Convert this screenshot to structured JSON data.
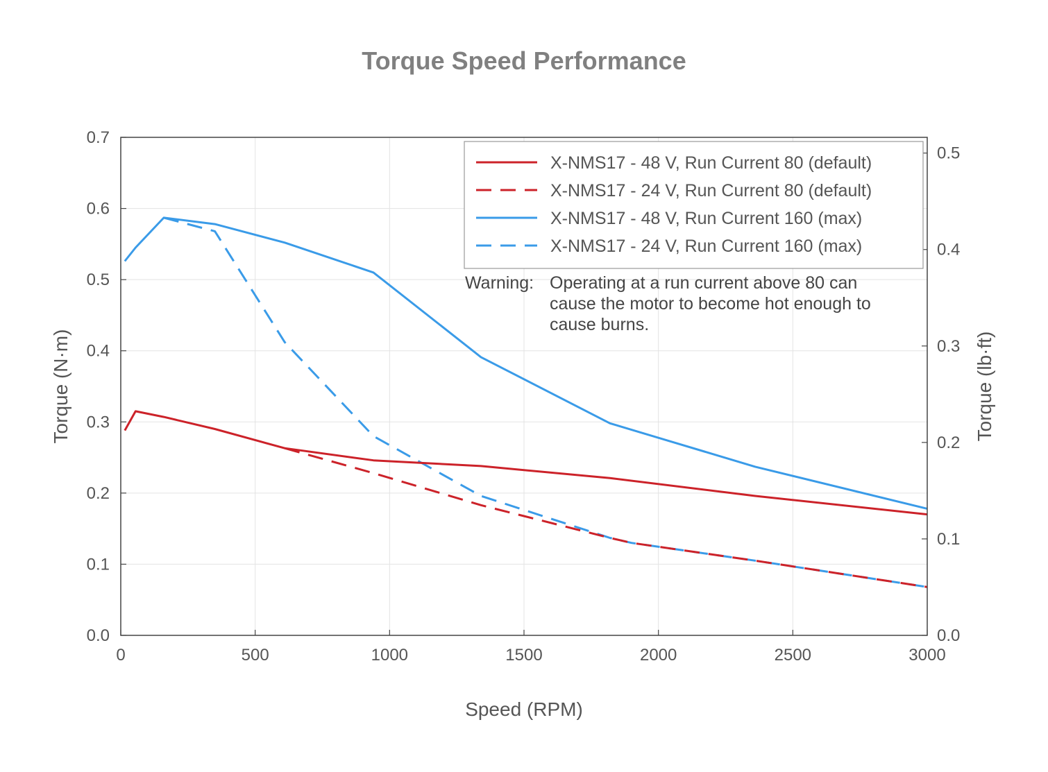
{
  "chart_data": {
    "type": "line",
    "title": "Torque Speed Performance",
    "xlabel": "Speed (RPM)",
    "ylabel": "Torque (N·m)",
    "y2label": "Torque (lb·ft)",
    "xlim": [
      0,
      3000
    ],
    "ylim": [
      0,
      0.7
    ],
    "y2lim": [
      0,
      0.5163
    ],
    "x_ticks": [
      "0",
      "500",
      "1000",
      "1500",
      "2000",
      "2500",
      "3000"
    ],
    "y_ticks": [
      "0.0",
      "0.1",
      "0.2",
      "0.3",
      "0.4",
      "0.5",
      "0.6",
      "0.7"
    ],
    "y2_ticks": [
      "0.0",
      "0.1",
      "0.2",
      "0.3",
      "0.4",
      "0.5"
    ],
    "grid": true,
    "legend_position": "top-right",
    "series": [
      {
        "name": "X-NMS17 - 48 V, Run Current 80 (default)",
        "color": "#cc2229",
        "style": "solid",
        "points": [
          [
            15,
            0.288
          ],
          [
            55,
            0.315
          ],
          [
            160,
            0.307
          ],
          [
            350,
            0.29
          ],
          [
            610,
            0.263
          ],
          [
            940,
            0.246
          ],
          [
            1340,
            0.238
          ],
          [
            1820,
            0.221
          ],
          [
            2360,
            0.196
          ],
          [
            3000,
            0.17
          ]
        ]
      },
      {
        "name": "X-NMS17 - 24 V, Run Current 80 (default)",
        "color": "#cc2229",
        "style": "dashed",
        "points": [
          [
            610,
            0.263
          ],
          [
            940,
            0.228
          ],
          [
            1340,
            0.183
          ],
          [
            1820,
            0.137
          ],
          [
            1900,
            0.13
          ],
          [
            2360,
            0.105
          ],
          [
            3000,
            0.068
          ]
        ]
      },
      {
        "name": "X-NMS17 - 48 V, Run Current 160 (max)",
        "color": "#3a9be8",
        "style": "solid",
        "points": [
          [
            15,
            0.526
          ],
          [
            55,
            0.545
          ],
          [
            160,
            0.587
          ],
          [
            350,
            0.578
          ],
          [
            610,
            0.552
          ],
          [
            940,
            0.51
          ],
          [
            1340,
            0.391
          ],
          [
            1820,
            0.298
          ],
          [
            2360,
            0.237
          ],
          [
            3000,
            0.178
          ]
        ]
      },
      {
        "name": "X-NMS17 - 24 V, Run Current 160 (max)",
        "color": "#3a9be8",
        "style": "dashed",
        "points": [
          [
            160,
            0.587
          ],
          [
            350,
            0.568
          ],
          [
            610,
            0.412
          ],
          [
            940,
            0.28
          ],
          [
            1340,
            0.196
          ],
          [
            1820,
            0.137
          ],
          [
            1900,
            0.13
          ],
          [
            2360,
            0.105
          ],
          [
            3000,
            0.068
          ]
        ]
      }
    ],
    "annotation": {
      "label": "Warning",
      "separator": ":",
      "lines": [
        "Operating at a run current above 80 can",
        "cause the motor to become hot enough to",
        "cause burns."
      ]
    }
  }
}
